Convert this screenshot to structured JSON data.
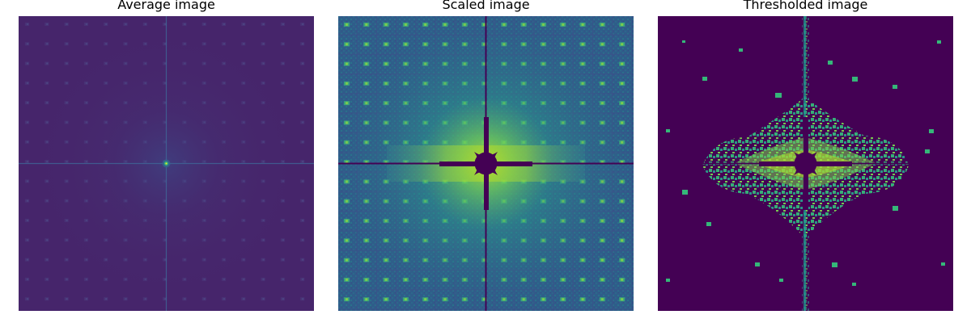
{
  "panels": [
    {
      "title": "Average image"
    },
    {
      "title": "Scaled image"
    },
    {
      "title": "Thresholded image"
    }
  ],
  "colors": {
    "viridis_dark": "#440154",
    "viridis_dark_purple": "#46256b",
    "viridis_blue": "#31688e",
    "viridis_teal": "#21918c",
    "viridis_green": "#35b779",
    "viridis_yellow": "#fde725",
    "threshold_mid": "#2aa784"
  }
}
